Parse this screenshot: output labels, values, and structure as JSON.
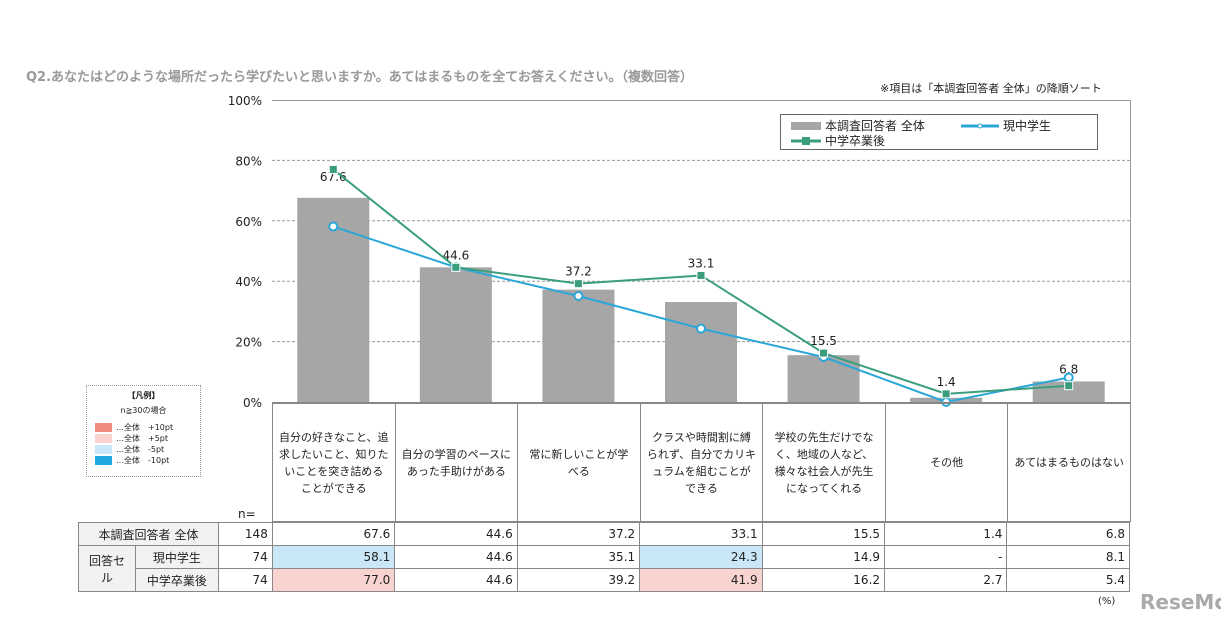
{
  "title": "Q2.あなたはどのような場所だったら学びたいと思いますか。あてはまるものを全てお答えください。（複数回答）",
  "note": "※項目は「本調査回答者  全体」の降順ソート",
  "key": {
    "title": "【凡例】",
    "subtitle": "n≧30の場合",
    "items": [
      {
        "label": "…全体　+10pt",
        "color": "#f08a7c"
      },
      {
        "label": "…全体　+5pt",
        "color": "#f9d3cf"
      },
      {
        "label": "…全体　-5pt",
        "color": "#c9e7f6"
      },
      {
        "label": "…全体　-10pt",
        "color": "#1fa7e0"
      }
    ]
  },
  "n_label": "n=",
  "unit": "(%)",
  "group_label": "回答セル",
  "watermark": "ReseMom",
  "chart_data": {
    "type": "bar+line",
    "ylim": [
      0,
      100
    ],
    "yticks": [
      "0%",
      "20%",
      "40%",
      "60%",
      "80%",
      "100%"
    ],
    "grid": true,
    "legend": "top-right",
    "categories": [
      "自分の好きなこと、追求したいこと、知りたいことを突き詰めることができる",
      "自分の学習のペースにあった手助けがある",
      "常に新しいことが学べる",
      "クラスや時間割に縛られず、自分でカリキュラムを組むことができる",
      "学校の先生だけでなく、地域の人など、様々な社会人が先生になってくれる",
      "その他",
      "あてはまるものはない"
    ],
    "series": [
      {
        "name": "本調査回答者  全体",
        "type": "bar",
        "color": "#a6a6a6",
        "n": "148",
        "values": [
          67.6,
          44.6,
          37.2,
          33.1,
          15.5,
          1.4,
          6.8
        ],
        "table": [
          "67.6",
          "44.6",
          "37.2",
          "33.1",
          "15.5",
          "1.4",
          "6.8"
        ]
      },
      {
        "name": "現中学生",
        "type": "line",
        "color": "#2aa7d8",
        "n": "74",
        "values": [
          58.1,
          44.6,
          35.1,
          24.3,
          14.9,
          0,
          8.1
        ],
        "table": [
          "58.1",
          "44.6",
          "35.1",
          "24.3",
          "14.9",
          "-",
          "8.1"
        ],
        "highlight": [
          "#c9e7f6",
          "",
          "",
          "#c9e7f6",
          "",
          "",
          ""
        ]
      },
      {
        "name": "中学卒業後",
        "type": "line",
        "color": "#3a9e7e",
        "n": "74",
        "values": [
          77.0,
          44.6,
          39.2,
          41.9,
          16.2,
          2.7,
          5.4
        ],
        "table": [
          "77.0",
          "44.6",
          "39.2",
          "41.9",
          "16.2",
          "2.7",
          "5.4"
        ],
        "highlight": [
          "#f9d3cf",
          "",
          "",
          "#f9d3cf",
          "",
          "",
          ""
        ]
      }
    ]
  }
}
